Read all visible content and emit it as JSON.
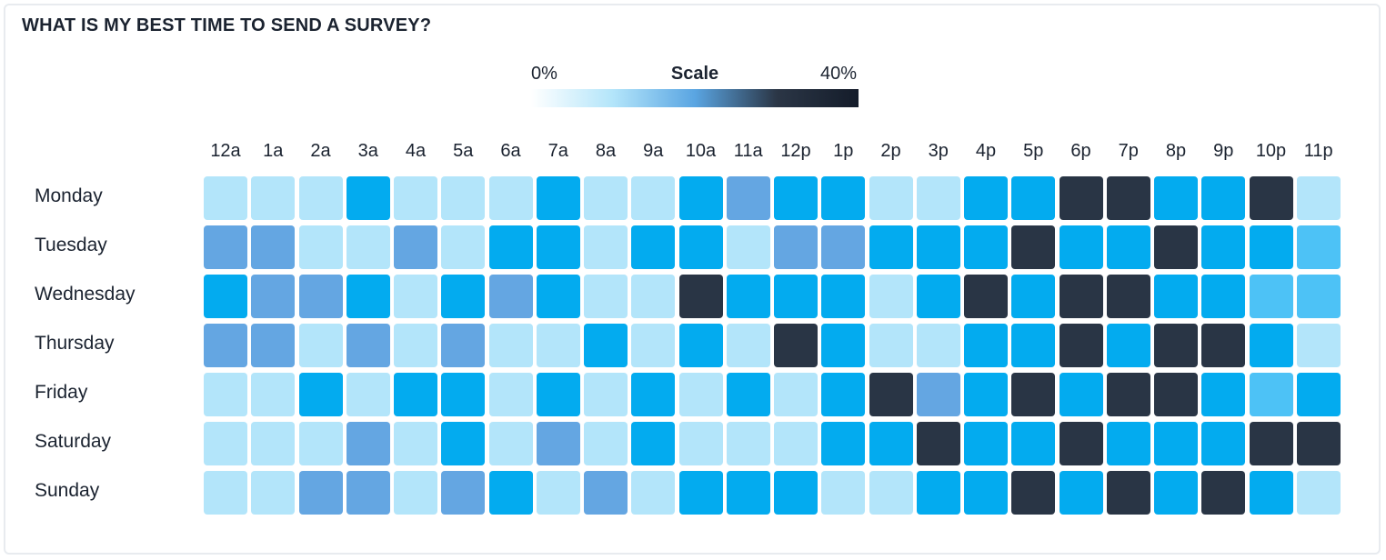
{
  "title": "WHAT IS MY BEST TIME TO SEND A SURVEY?",
  "legend": {
    "title": "Scale",
    "min_label": "0%",
    "max_label": "40%",
    "gradient_colors": [
      "#ffffff",
      "#b3e5fa",
      "#5aa5e2",
      "#2b3646",
      "#141c2a"
    ]
  },
  "colors": {
    "level_0": "#b3e5fa",
    "level_1": "#03abef",
    "level_2": "#64a6e2",
    "level_3": "#4dc2f6",
    "level_4": "#293545"
  },
  "chart_data": {
    "type": "heatmap",
    "title": "WHAT IS MY BEST TIME TO SEND A SURVEY?",
    "x": [
      "12a",
      "1a",
      "2a",
      "3a",
      "4a",
      "5a",
      "6a",
      "7a",
      "8a",
      "9a",
      "10a",
      "11a",
      "12p",
      "1p",
      "2p",
      "3p",
      "4p",
      "5p",
      "6p",
      "7p",
      "8p",
      "9p",
      "10p",
      "11p"
    ],
    "y": [
      "Monday",
      "Tuesday",
      "Wednesday",
      "Thursday",
      "Friday",
      "Saturday",
      "Sunday"
    ],
    "scale": {
      "title": "Scale",
      "min": "0%",
      "max": "40%"
    },
    "value_encoding": "color level index 0-4 (0 = light blue, 1 = bright blue, 3 = medium-light blue, 2 = medium blue, 4 = dark navy)",
    "values": [
      [
        0,
        0,
        0,
        1,
        0,
        0,
        0,
        1,
        0,
        0,
        1,
        2,
        1,
        1,
        0,
        0,
        1,
        1,
        4,
        4,
        1,
        1,
        4,
        0
      ],
      [
        2,
        2,
        0,
        0,
        2,
        0,
        1,
        1,
        0,
        1,
        1,
        0,
        2,
        2,
        1,
        1,
        1,
        4,
        1,
        1,
        4,
        1,
        1,
        3
      ],
      [
        1,
        2,
        2,
        1,
        0,
        1,
        2,
        1,
        0,
        0,
        4,
        1,
        1,
        1,
        0,
        1,
        4,
        1,
        4,
        4,
        1,
        1,
        3,
        3
      ],
      [
        2,
        2,
        0,
        2,
        0,
        2,
        0,
        0,
        1,
        0,
        1,
        0,
        4,
        1,
        0,
        0,
        1,
        1,
        4,
        1,
        4,
        4,
        1,
        0
      ],
      [
        0,
        0,
        1,
        0,
        1,
        1,
        0,
        1,
        0,
        1,
        0,
        1,
        0,
        1,
        4,
        2,
        1,
        4,
        1,
        4,
        4,
        1,
        3,
        1
      ],
      [
        0,
        0,
        0,
        2,
        0,
        1,
        0,
        2,
        0,
        1,
        0,
        0,
        0,
        1,
        1,
        4,
        1,
        1,
        4,
        1,
        1,
        1,
        4,
        4
      ],
      [
        0,
        0,
        2,
        2,
        0,
        2,
        1,
        0,
        2,
        0,
        1,
        1,
        1,
        0,
        0,
        1,
        1,
        4,
        1,
        4,
        1,
        4,
        1,
        0
      ]
    ]
  }
}
